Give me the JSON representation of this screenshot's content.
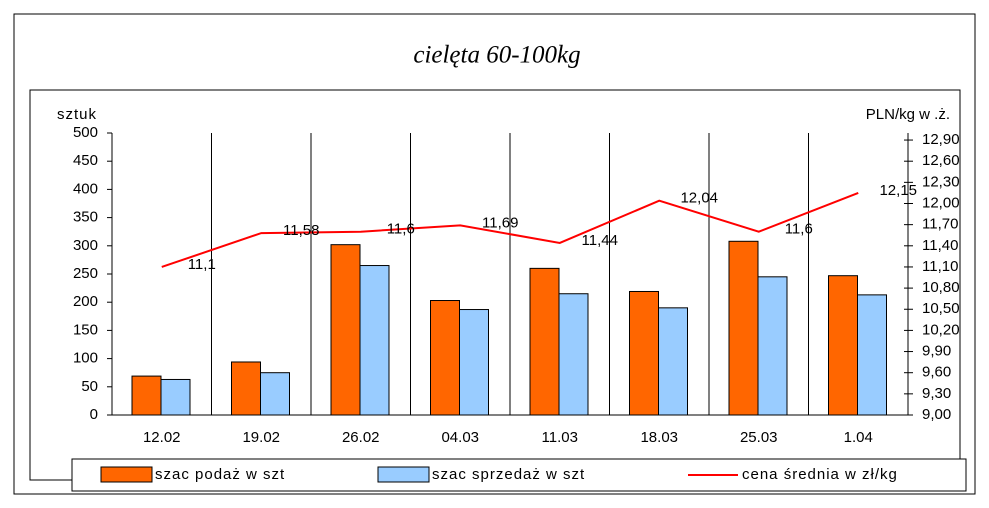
{
  "chart_data": {
    "type": "bar_line",
    "title": "cielęta 60-100kg",
    "ylabel": "sztuk",
    "y2label": "PLN/kg w .ż.",
    "categories": [
      "12.02",
      "19.02",
      "26.02",
      "04.03",
      "11.03",
      "18.03",
      "25.03",
      "1.04"
    ],
    "series": [
      {
        "name": "szac podaż w szt",
        "color": "#ff6600",
        "type": "bar",
        "values": [
          69,
          94,
          302,
          203,
          260,
          219,
          308,
          247
        ]
      },
      {
        "name": "szac sprzedaż w szt",
        "color": "#99ccff",
        "type": "bar",
        "values": [
          63,
          75,
          265,
          187,
          215,
          190,
          245,
          213
        ]
      },
      {
        "name": "cena średnia w zł/kg",
        "color": "#ff0000",
        "type": "line",
        "axis": "y2",
        "values": [
          11.1,
          11.58,
          11.6,
          11.69,
          11.44,
          12.04,
          11.6,
          12.15
        ],
        "value_labels": [
          "11,1",
          "11,58",
          "11,6",
          "11,69",
          "11,44",
          "12,04",
          "11,6",
          "12,15"
        ]
      }
    ],
    "ylim": [
      0,
      500
    ],
    "yticks": [
      0,
      50,
      100,
      150,
      200,
      250,
      300,
      350,
      400,
      450,
      500
    ],
    "y2lim": [
      9,
      13
    ],
    "y2ticks": [
      {
        "value": 9,
        "label": "9,00"
      },
      {
        "value": 9.3,
        "label": "9,30"
      },
      {
        "value": 9.6,
        "label": "9,60"
      },
      {
        "value": 9.9,
        "label": "9,90"
      },
      {
        "value": 10.2,
        "label": "10,20"
      },
      {
        "value": 10.5,
        "label": "10,50"
      },
      {
        "value": 10.8,
        "label": "10,80"
      },
      {
        "value": 11.1,
        "label": "11,10"
      },
      {
        "value": 11.4,
        "label": "11,40"
      },
      {
        "value": 11.7,
        "label": "11,70"
      },
      {
        "value": 12,
        "label": "12,00"
      },
      {
        "value": 12.3,
        "label": "12,30"
      },
      {
        "value": 12.6,
        "label": "12,60"
      },
      {
        "value": 12.9,
        "label": "12,90"
      }
    ],
    "grid": true,
    "legend": "bottom"
  }
}
